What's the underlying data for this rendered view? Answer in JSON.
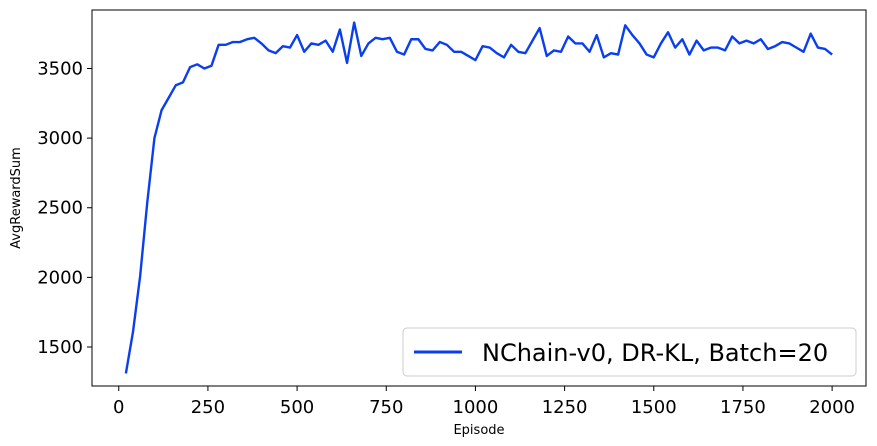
{
  "chart_data": {
    "type": "line",
    "xlabel": "Episode",
    "ylabel": "AvgRewardSum",
    "xlim": [
      -75,
      2095
    ],
    "ylim": [
      1220,
      3920
    ],
    "xticks": [
      0,
      250,
      500,
      750,
      1000,
      1250,
      1500,
      1750,
      2000
    ],
    "yticks": [
      1500,
      2000,
      2500,
      3000,
      3500
    ],
    "grid": false,
    "legend_position": "lower-right",
    "series": [
      {
        "name": "NChain-v0, DR-KL, Batch=20",
        "color": "#0a3ff0",
        "x": [
          20,
          40,
          60,
          80,
          100,
          120,
          140,
          160,
          180,
          200,
          220,
          240,
          260,
          280,
          300,
          320,
          340,
          360,
          380,
          400,
          420,
          440,
          460,
          480,
          500,
          520,
          540,
          560,
          580,
          600,
          620,
          640,
          660,
          680,
          700,
          720,
          740,
          760,
          780,
          800,
          820,
          840,
          860,
          880,
          900,
          920,
          940,
          960,
          980,
          1000,
          1020,
          1040,
          1060,
          1080,
          1100,
          1120,
          1140,
          1160,
          1180,
          1200,
          1220,
          1240,
          1260,
          1280,
          1300,
          1320,
          1340,
          1360,
          1380,
          1400,
          1420,
          1440,
          1460,
          1480,
          1500,
          1520,
          1540,
          1560,
          1580,
          1600,
          1620,
          1640,
          1660,
          1680,
          1700,
          1720,
          1740,
          1760,
          1780,
          1800,
          1820,
          1840,
          1860,
          1880,
          1900,
          1920,
          1940,
          1960,
          1980,
          2000
        ],
        "values": [
          1310,
          1610,
          2010,
          2540,
          3000,
          3200,
          3290,
          3380,
          3400,
          3510,
          3530,
          3500,
          3520,
          3670,
          3670,
          3690,
          3690,
          3710,
          3720,
          3680,
          3630,
          3610,
          3660,
          3650,
          3740,
          3620,
          3680,
          3670,
          3700,
          3620,
          3780,
          3540,
          3830,
          3590,
          3680,
          3720,
          3710,
          3720,
          3620,
          3600,
          3710,
          3710,
          3640,
          3630,
          3690,
          3670,
          3620,
          3620,
          3590,
          3560,
          3660,
          3650,
          3610,
          3580,
          3670,
          3620,
          3610,
          3700,
          3790,
          3590,
          3630,
          3620,
          3730,
          3680,
          3680,
          3620,
          3740,
          3580,
          3610,
          3600,
          3810,
          3740,
          3680,
          3600,
          3580,
          3680,
          3760,
          3650,
          3710,
          3600,
          3700,
          3630,
          3650,
          3650,
          3630,
          3730,
          3680,
          3700,
          3680,
          3710,
          3640,
          3660,
          3690,
          3680,
          3650,
          3620,
          3750,
          3650,
          3640,
          3600
        ]
      }
    ]
  }
}
